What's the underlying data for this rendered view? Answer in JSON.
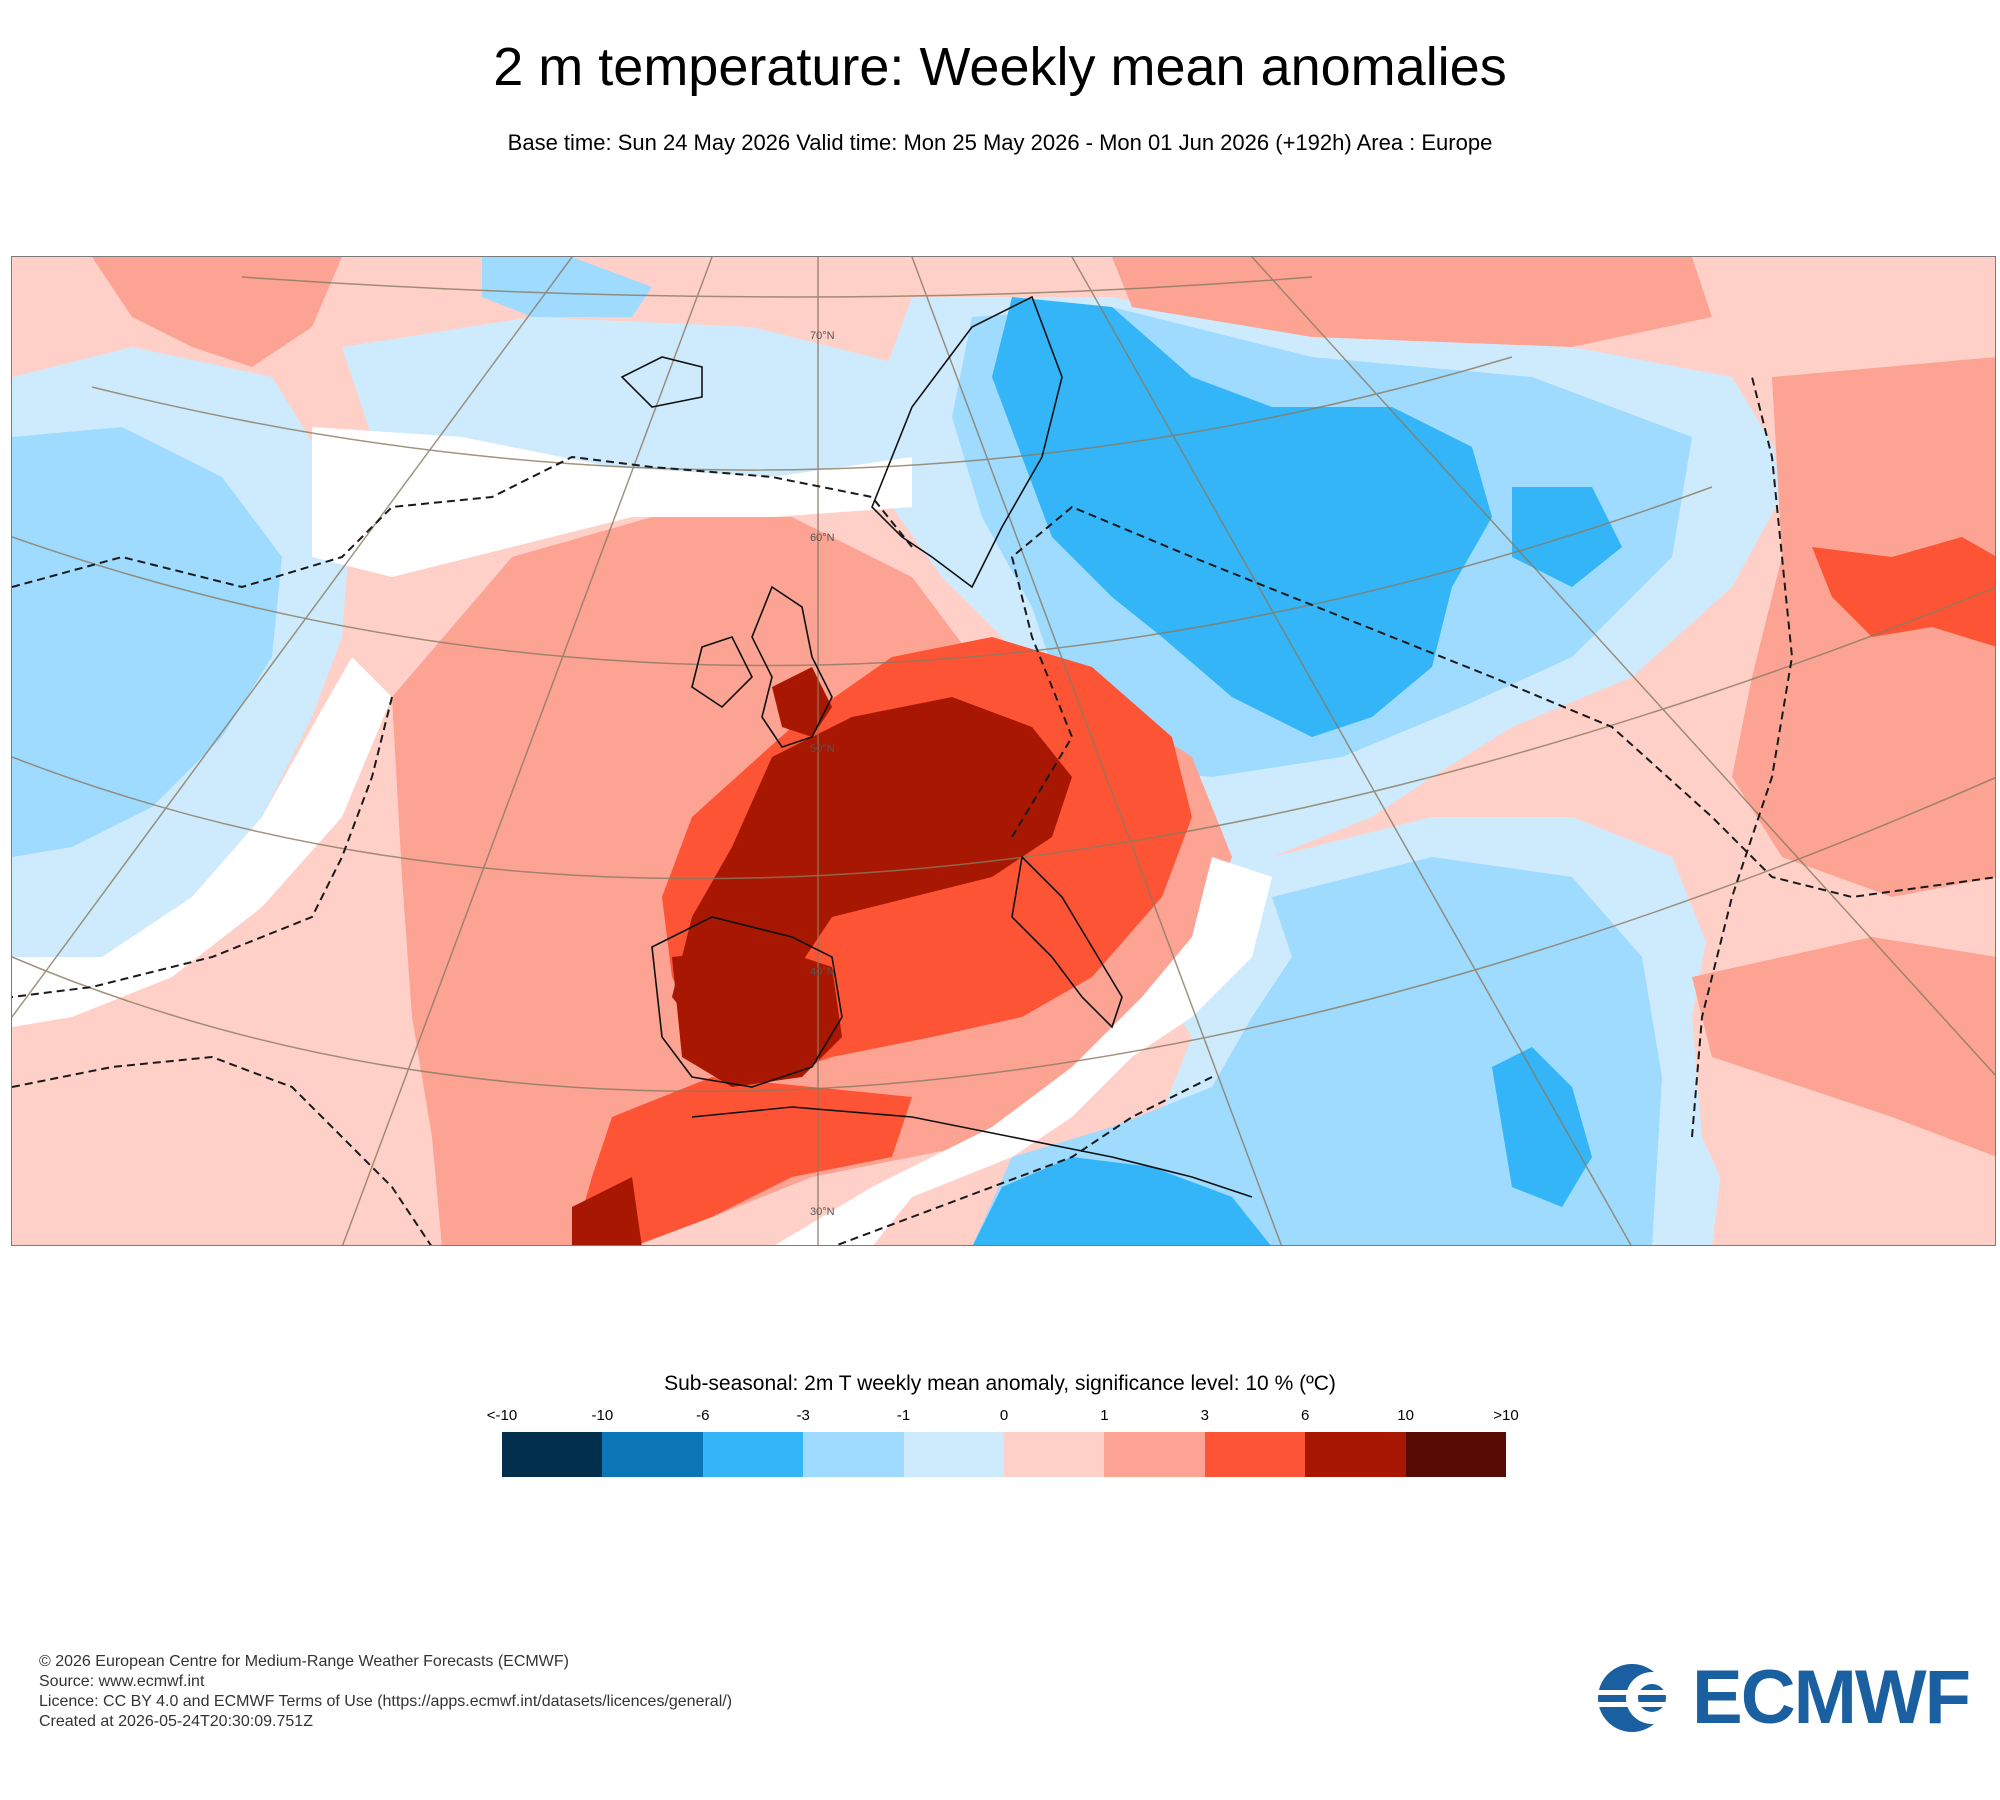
{
  "title": "2 m temperature: Weekly mean anomalies",
  "subtitle": "Base time: Sun 24 May 2026 Valid time: Mon 25 May 2026 - Mon 01 Jun 2026 (+192h) Area : Europe",
  "map": {
    "area": "Europe",
    "latitude_labels": [
      "70°N",
      "60°N",
      "50°N",
      "40°N",
      "30°N"
    ],
    "significance_contour": "dashed"
  },
  "legend": {
    "title": "Sub-seasonal: 2m T weekly mean anomaly, significance level: 10 % (ºC)",
    "labels": [
      "<-10",
      "-10",
      "-6",
      "-3",
      "-1",
      "0",
      "1",
      "3",
      "6",
      "10",
      ">10"
    ],
    "colors": [
      "#012f4c",
      "#0b76b5",
      "#33b5f8",
      "#9fdaff",
      "#ceebfe",
      "#ffd0c8",
      "#fca393",
      "#fc5434",
      "#a81702",
      "#570b02"
    ]
  },
  "footer": {
    "copyright": "© 2026 European Centre for Medium-Range Weather Forecasts (ECMWF)",
    "source": "Source: www.ecmwf.int",
    "licence": "Licence: CC BY 4.0 and ECMWF Terms of Use (https://apps.ecmwf.int/datasets/licences/general/)",
    "created": "Created at 2026-05-24T20:30:09.751Z"
  },
  "logo": {
    "text": "ECMWF",
    "color": "#1a5fa0"
  }
}
